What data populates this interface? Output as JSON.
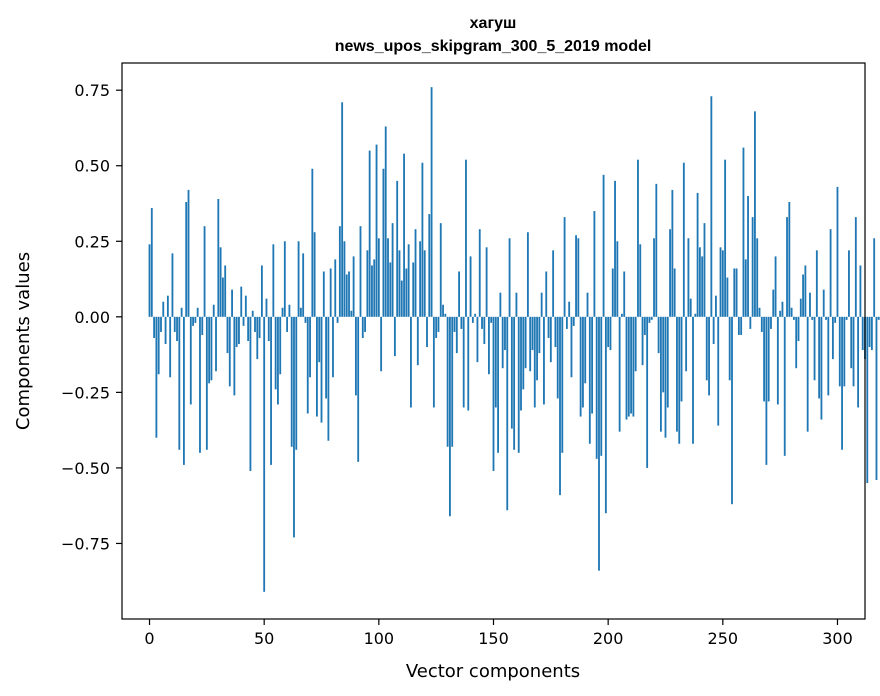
{
  "chart_data": {
    "type": "bar",
    "title_line1": "хагуш",
    "title_line2": "news_upos_skipgram_300_5_2019 model",
    "xlabel": "Vector components",
    "ylabel": "Components values",
    "xlim": [
      -12,
      312
    ],
    "ylim": [
      -1.0,
      0.84
    ],
    "xticks": [
      0,
      50,
      100,
      150,
      200,
      250,
      300
    ],
    "xtick_labels": [
      "0",
      "50",
      "100",
      "150",
      "200",
      "250",
      "300"
    ],
    "yticks": [
      -0.75,
      -0.5,
      -0.25,
      0.0,
      0.25,
      0.5,
      0.75
    ],
    "ytick_labels": [
      "−0.75",
      "−0.50",
      "−0.25",
      "0.00",
      "0.25",
      "0.50",
      "0.75"
    ],
    "bar_color": "#1f77b4",
    "values": [
      0.24,
      0.36,
      -0.07,
      -0.4,
      -0.19,
      -0.05,
      0.05,
      -0.09,
      0.07,
      -0.2,
      0.21,
      -0.05,
      -0.08,
      -0.44,
      0.03,
      -0.49,
      0.38,
      0.42,
      -0.29,
      -0.03,
      -0.02,
      0.03,
      -0.45,
      -0.06,
      0.3,
      -0.44,
      -0.22,
      -0.21,
      0.04,
      -0.18,
      0.39,
      0.23,
      0.13,
      0.17,
      -0.12,
      -0.23,
      0.09,
      -0.26,
      -0.1,
      -0.09,
      0.1,
      -0.03,
      0.07,
      -0.08,
      -0.51,
      0.02,
      -0.05,
      -0.14,
      -0.07,
      0.17,
      -0.91,
      0.06,
      -0.08,
      -0.49,
      0.24,
      -0.24,
      -0.29,
      -0.19,
      0.03,
      0.25,
      -0.05,
      0.04,
      -0.43,
      -0.73,
      -0.44,
      0.25,
      0.03,
      0.21,
      -0.02,
      -0.32,
      -0.2,
      0.49,
      0.28,
      -0.33,
      -0.15,
      -0.35,
      0.15,
      -0.27,
      -0.41,
      0.16,
      -0.2,
      0.19,
      -0.02,
      0.3,
      0.71,
      0.25,
      0.14,
      0.15,
      0.02,
      0.2,
      -0.26,
      -0.48,
      0.3,
      -0.07,
      -0.05,
      0.22,
      0.55,
      0.17,
      0.19,
      0.57,
      0.26,
      -0.18,
      0.49,
      0.63,
      0.26,
      0.18,
      0.31,
      -0.13,
      0.45,
      0.22,
      0.12,
      0.54,
      0.16,
      0.24,
      -0.3,
      0.18,
      0.29,
      -0.16,
      0.25,
      0.51,
      0.22,
      -0.1,
      0.34,
      0.76,
      -0.3,
      -0.07,
      -0.05,
      0.31,
      0.04,
      0.01,
      -0.43,
      -0.66,
      -0.43,
      -0.05,
      -0.12,
      0.15,
      -0.04,
      -0.3,
      0.52,
      -0.31,
      0.2,
      -0.02,
      0.01,
      -0.15,
      0.29,
      -0.04,
      -0.09,
      0.23,
      -0.19,
      -0.02,
      -0.51,
      -0.3,
      -0.45,
      0.08,
      -0.17,
      -0.11,
      -0.64,
      0.26,
      -0.37,
      -0.44,
      0.08,
      -0.45,
      -0.31,
      -0.24,
      -0.17,
      0.28,
      -0.18,
      -0.11,
      -0.3,
      -0.21,
      -0.12,
      0.08,
      -0.29,
      0.15,
      -0.07,
      -0.15,
      0.22,
      -0.1,
      -0.27,
      -0.59,
      -0.45,
      0.33,
      -0.04,
      0.05,
      -0.2,
      -0.03,
      0.27,
      0.26,
      -0.33,
      -0.3,
      -0.22,
      0.08,
      -0.42,
      -0.32,
      0.35,
      -0.47,
      -0.84,
      -0.46,
      0.47,
      -0.65,
      -0.1,
      -0.11,
      0.16,
      0.45,
      0.25,
      -0.38,
      0.01,
      0.15,
      -0.34,
      -0.33,
      -0.32,
      -0.33,
      -0.18,
      0.52,
      0.24,
      -0.16,
      -0.06,
      -0.5,
      -0.02,
      -0.01,
      0.26,
      0.44,
      -0.12,
      -0.38,
      -0.25,
      -0.4,
      -0.3,
      0.29,
      0.42,
      0.16,
      -0.38,
      -0.42,
      -0.28,
      0.51,
      -0.18,
      0.26,
      0.06,
      -0.42,
      0.01,
      0.41,
      0.23,
      0.2,
      0.31,
      -0.21,
      -0.26,
      0.73,
      -0.09,
      0.07,
      -0.36,
      0.23,
      0.22,
      0.52,
      0.13,
      -0.21,
      -0.62,
      0.16,
      0.16,
      -0.06,
      -0.06,
      0.56,
      0.19,
      0.4,
      -0.04,
      0.33,
      0.68,
      0.26,
      0.03,
      -0.05,
      -0.28,
      -0.49,
      -0.28,
      -0.04,
      0.09,
      0.2,
      -0.29,
      0.02,
      0.05,
      -0.46,
      0.33,
      0.38,
      0.03,
      -0.01,
      -0.17,
      -0.08,
      0.06,
      0.14,
      0.17,
      -0.38,
      0.08,
      -0.01,
      -0.21,
      0.22,
      -0.27,
      -0.34,
      0.09,
      -0.01,
      -0.26,
      0.29,
      -0.14,
      -0.02,
      0.43,
      -0.23,
      -0.44,
      -0.23,
      -0.01,
      0.22,
      -0.17,
      -0.23,
      0.33,
      -0.3,
      0.17,
      -0.11,
      -0.14,
      -0.55,
      -0.1,
      -0.11,
      0.26,
      -0.54,
      -0.01
    ]
  }
}
